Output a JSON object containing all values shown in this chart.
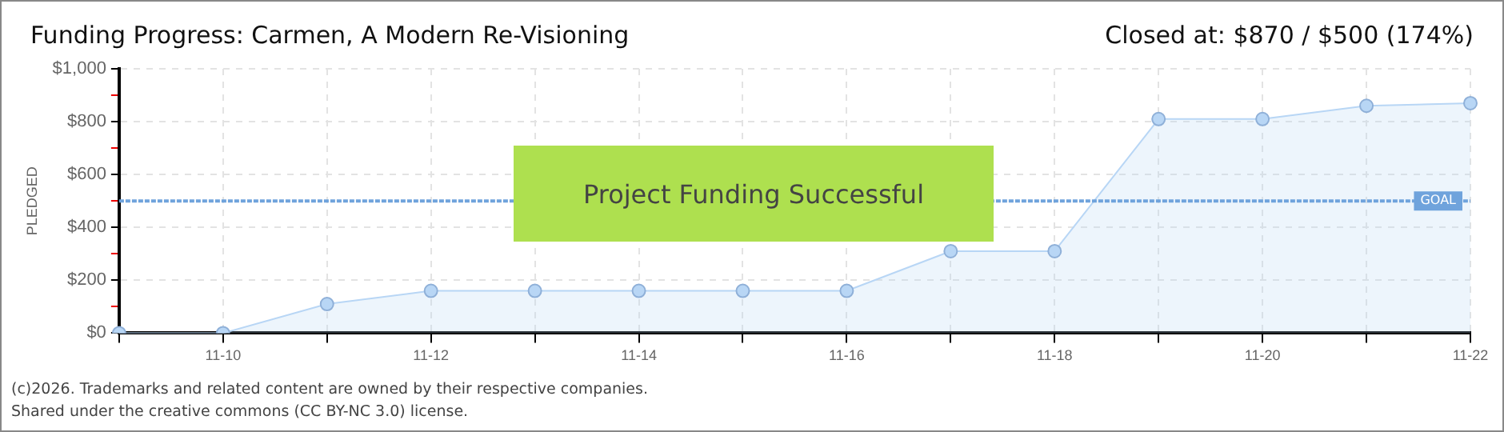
{
  "chart_data": {
    "type": "area",
    "title": "Funding Progress: Carmen, A Modern Re-Visioning",
    "subtitle": "Closed at: $870 / $500 (174%)",
    "ylabel": "PLEDGED",
    "categories": [
      null,
      "11-10",
      null,
      "11-12",
      null,
      "11-14",
      null,
      "11-16",
      null,
      "11-18",
      null,
      "11-20",
      null,
      "11-22"
    ],
    "series": [
      {
        "color": "#b8d6f5",
        "values": [
          0,
          0,
          110,
          160,
          160,
          160,
          160,
          160,
          310,
          310,
          810,
          810,
          860,
          870
        ]
      }
    ],
    "ylim": [
      0,
      1000
    ],
    "yticks": [
      {
        "value": 0,
        "label": "$0"
      },
      {
        "value": 100,
        "label": null
      },
      {
        "value": 200,
        "label": "$200"
      },
      {
        "value": 300,
        "label": null
      },
      {
        "value": 400,
        "label": "$400"
      },
      {
        "value": 500,
        "label": null
      },
      {
        "value": 600,
        "label": "$600"
      },
      {
        "value": 700,
        "label": null
      },
      {
        "value": 800,
        "label": "$800"
      },
      {
        "value": 900,
        "label": null
      },
      {
        "value": 1000,
        "label": "$1,000"
      }
    ],
    "ref_lines": [
      {
        "axis": "y",
        "value": 500,
        "label": "GOAL",
        "color": "#6fa3dc",
        "line_style": "dashed"
      }
    ],
    "annotations": [
      "Project Funding Successful",
      "(c)2026. Trademarks and related content are owned by their respective companies.",
      "Shared under the creative commons (CC BY-NC 3.0) license."
    ],
    "grid": true,
    "marker": "circle",
    "legend": false
  }
}
